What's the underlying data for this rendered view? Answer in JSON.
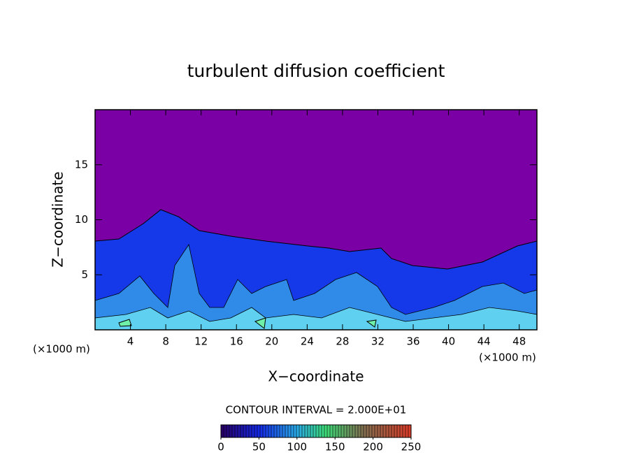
{
  "chart_data": {
    "type": "contour",
    "title": "turbulent diffusion coefficient",
    "x_label": "X−coordinate",
    "y_label": "Z−coordinate",
    "x_unit": "(×1000 m)",
    "xlim": [
      0,
      50
    ],
    "xticks": [
      4,
      8,
      12,
      16,
      20,
      24,
      28,
      32,
      36,
      40,
      44,
      48
    ],
    "ylim": [
      0,
      20
    ],
    "yticks": [
      5,
      10,
      15
    ],
    "contour_interval_label": "CONTOUR INTERVAL = 2.000E+01",
    "clim": [
      0,
      250
    ],
    "cticks": [
      0,
      50,
      100,
      150,
      200,
      250
    ]
  }
}
